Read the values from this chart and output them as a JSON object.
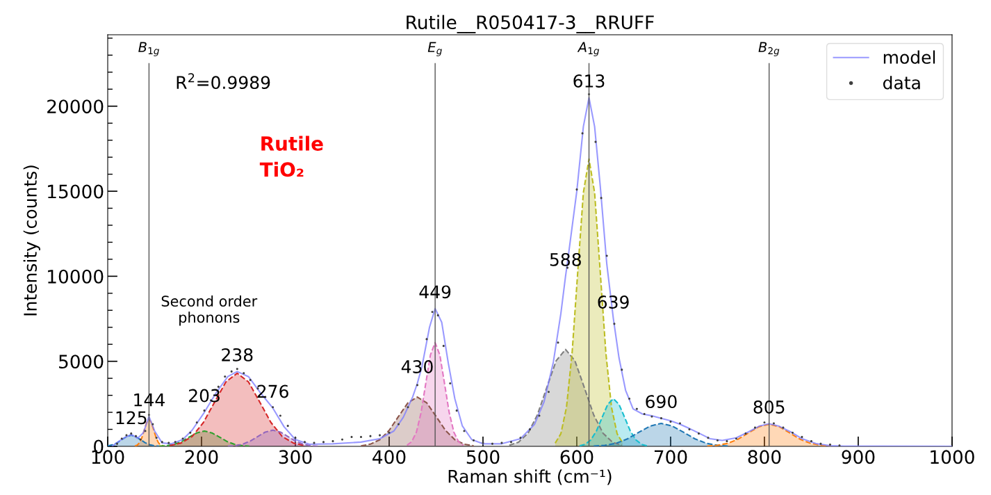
{
  "chart_data": {
    "type": "line",
    "title": "Rutile__R050417-3__RRUFF",
    "xlabel": "Raman shift (cm⁻¹)",
    "ylabel": "Intensity (counts)",
    "xlim": [
      100,
      1000
    ],
    "xticks": [
      100,
      200,
      300,
      400,
      500,
      600,
      700,
      800,
      900,
      1000
    ],
    "ylim": [
      0,
      24200
    ],
    "yticks": [
      0,
      {
        "value": 1000,
        "label": null
      },
      {
        "value": 2000,
        "label": null
      },
      {
        "value": 3000,
        "label": null
      },
      {
        "value": 4000,
        "label": null
      },
      5000,
      {
        "value": 6000,
        "label": null
      },
      {
        "value": 7000,
        "label": null
      },
      {
        "value": 8000,
        "label": null
      },
      {
        "value": 9000,
        "label": null
      },
      10000,
      {
        "value": 11000,
        "label": null
      },
      {
        "value": 12000,
        "label": null
      },
      {
        "value": 13000,
        "label": null
      },
      {
        "value": 14000,
        "label": null
      },
      15000,
      {
        "value": 16000,
        "label": null
      },
      {
        "value": 17000,
        "label": null
      },
      {
        "value": 18000,
        "label": null
      },
      {
        "value": 19000,
        "label": null
      },
      20000,
      {
        "value": 21000,
        "label": null
      },
      {
        "value": 22000,
        "label": null
      },
      {
        "value": 23000,
        "label": null
      },
      {
        "value": 24000,
        "label": null
      }
    ],
    "grid": false,
    "legend": "top right",
    "series": [
      {
        "name": "model",
        "color": "#8080ff",
        "line_style": "solid",
        "x": [
          105,
          115,
          125,
          132,
          138,
          144,
          150,
          158,
          168,
          180,
          190,
          203,
          215,
          228,
          238,
          250,
          262,
          276,
          288,
          300,
          315,
          340,
          370,
          390,
          405,
          415,
          425,
          430,
          435,
          443,
          449,
          456,
          463,
          470,
          478,
          488,
          500,
          520,
          540,
          555,
          565,
          575,
          583,
          588,
          590,
          600,
          607,
          613,
          619,
          625,
          632,
          639,
          645,
          652,
          660,
          670,
          680,
          690,
          700,
          710,
          720,
          730,
          742,
          755,
          770,
          783,
          795,
          805,
          815,
          828,
          840,
          855,
          870,
          885,
          1000
        ],
        "values": [
          20,
          420,
          700,
          480,
          800,
          1750,
          900,
          200,
          150,
          400,
          950,
          2000,
          3100,
          4100,
          4400,
          4100,
          3200,
          2250,
          1150,
          400,
          120,
          150,
          250,
          450,
          900,
          1700,
          2900,
          3700,
          4700,
          7000,
          8100,
          7300,
          4900,
          2800,
          1200,
          400,
          150,
          150,
          450,
          1300,
          2600,
          4950,
          7800,
          10000,
          10800,
          15000,
          18800,
          20500,
          18800,
          15300,
          10700,
          7500,
          5200,
          3300,
          2200,
          1900,
          1800,
          1650,
          1500,
          1300,
          1050,
          780,
          450,
          350,
          500,
          850,
          1200,
          1330,
          1200,
          850,
          450,
          160,
          40,
          10,
          0
        ]
      },
      {
        "name": "data",
        "type": "scatter",
        "color": "#404040",
        "marker": "circle",
        "x": [
          110,
          115,
          120,
          125,
          130,
          135,
          140,
          144,
          148,
          152,
          158,
          165,
          172,
          180,
          188,
          195,
          203,
          210,
          218,
          225,
          232,
          238,
          245,
          252,
          260,
          268,
          276,
          284,
          292,
          300,
          310,
          320,
          330,
          340,
          350,
          360,
          370,
          380,
          390,
          400,
          410,
          420,
          430,
          440,
          446,
          452,
          458,
          465,
          472,
          480,
          490,
          500,
          510,
          520,
          530,
          540,
          550,
          560,
          570,
          580,
          590,
          600,
          606,
          613,
          620,
          626,
          632,
          640,
          648,
          656,
          664,
          672,
          680,
          690,
          700,
          710,
          720,
          730,
          740,
          750,
          760,
          770,
          780,
          790,
          800,
          810,
          820,
          830,
          840,
          850,
          860,
          870,
          880
        ],
        "values": [
          150,
          450,
          650,
          750,
          600,
          400,
          900,
          1850,
          1300,
          500,
          250,
          200,
          250,
          450,
          800,
          1400,
          2100,
          2700,
          3500,
          4100,
          4400,
          4550,
          4300,
          3900,
          3400,
          2900,
          2300,
          1800,
          1200,
          500,
          250,
          200,
          250,
          300,
          400,
          550,
          550,
          600,
          650,
          800,
          1300,
          2300,
          3600,
          6300,
          7900,
          7700,
          5900,
          3700,
          2100,
          900,
          350,
          200,
          150,
          200,
          250,
          500,
          1000,
          1800,
          3200,
          6100,
          10500,
          15100,
          18400,
          20700,
          17900,
          14600,
          11200,
          7200,
          4500,
          2800,
          2200,
          1900,
          1750,
          1650,
          1450,
          1350,
          1000,
          750,
          500,
          350,
          300,
          450,
          750,
          1100,
          1400,
          1350,
          1100,
          800,
          550,
          300,
          150,
          100,
          50
        ]
      },
      {
        "type": "area",
        "color": "#1f77b4",
        "line_style": "dashed",
        "x": [
          100,
          105,
          110,
          115,
          120,
          125,
          130,
          135,
          140,
          145,
          150,
          155
        ],
        "values": [
          30,
          90,
          210,
          390,
          570,
          650,
          570,
          390,
          210,
          90,
          30,
          10
        ]
      },
      {
        "type": "area",
        "color": "#ff7f0e",
        "line_style": "dashed",
        "x": [
          129,
          131.5,
          134,
          136.5,
          139,
          141.5,
          144,
          146.5,
          149,
          151.5,
          154,
          156.5,
          159
        ],
        "values": [
          20,
          70,
          220,
          520,
          970,
          1410,
          1600,
          1410,
          970,
          520,
          220,
          70,
          20
        ]
      },
      {
        "type": "area",
        "color": "#2ca02c",
        "line_style": "dashed",
        "x": [
          155,
          163,
          171,
          179,
          187,
          195,
          203,
          211,
          219,
          227,
          235,
          243,
          251
        ],
        "values": [
          10,
          40,
          120,
          290,
          550,
          790,
          900,
          790,
          550,
          290,
          120,
          40,
          10
        ]
      },
      {
        "type": "area",
        "color": "#d62728",
        "line_style": "dashed",
        "x": [
          166,
          178,
          190,
          202,
          214,
          226,
          238,
          250,
          262,
          274,
          286,
          298,
          310
        ],
        "values": [
          50,
          190,
          580,
          1400,
          2610,
          3790,
          4300,
          3790,
          2610,
          1400,
          580,
          190,
          50
        ]
      },
      {
        "type": "area",
        "color": "#9467bd",
        "line_style": "dashed",
        "x": [
          228,
          236,
          244,
          252,
          260,
          268,
          276,
          284,
          292,
          300,
          308,
          316,
          324
        ],
        "values": [
          10,
          40,
          130,
          310,
          580,
          840,
          950,
          840,
          580,
          310,
          130,
          40,
          10
        ]
      },
      {
        "type": "area",
        "color": "#8c564b",
        "line_style": "dashed",
        "x": [
          370,
          380,
          390,
          400,
          410,
          420,
          430,
          440,
          450,
          460,
          470,
          480,
          490
        ],
        "values": [
          30,
          130,
          390,
          940,
          1760,
          2560,
          2900,
          2560,
          1760,
          940,
          390,
          130,
          30
        ]
      },
      {
        "type": "area",
        "color": "#e377c2",
        "line_style": "dashed",
        "x": [
          419,
          424,
          429,
          434,
          439,
          444,
          449,
          454,
          459,
          464,
          469,
          474,
          479
        ],
        "values": [
          70,
          270,
          830,
          1980,
          3700,
          5380,
          6100,
          5380,
          3700,
          1980,
          830,
          270,
          70
        ]
      },
      {
        "type": "area",
        "color": "#7f7f7f",
        "line_style": "dashed",
        "x": [
          528,
          538,
          548,
          558,
          568,
          578,
          588,
          598,
          608,
          618,
          628,
          638,
          648
        ],
        "values": [
          60,
          250,
          770,
          1850,
          3460,
          5030,
          5700,
          5030,
          3460,
          1850,
          770,
          250,
          60
        ]
      },
      {
        "type": "area",
        "color": "#bcbd22",
        "line_style": "dashed",
        "x": [
          577,
          583,
          589,
          595,
          601,
          607,
          613,
          619,
          625,
          631,
          637,
          643,
          649
        ],
        "values": [
          190,
          740,
          2290,
          5490,
          10250,
          14910,
          16900,
          14910,
          10250,
          5490,
          2290,
          740,
          190
        ]
      },
      {
        "type": "area",
        "color": "#17becf",
        "line_style": "dashed",
        "x": [
          603,
          609,
          615,
          621,
          627,
          633,
          639,
          645,
          651,
          657,
          663,
          669,
          675
        ],
        "values": [
          30,
          120,
          380,
          910,
          1700,
          2470,
          2800,
          2470,
          1700,
          910,
          380,
          120,
          30
        ]
      },
      {
        "type": "area",
        "color": "#1f77b4",
        "line_style": "dashed",
        "x": [
          618,
          630,
          642,
          654,
          666,
          678,
          690,
          702,
          714,
          726,
          738,
          750,
          762
        ],
        "values": [
          20,
          60,
          180,
          440,
          820,
          1190,
          1350,
          1190,
          820,
          440,
          180,
          60,
          20
        ]
      },
      {
        "type": "area",
        "color": "#ff7f0e",
        "line_style": "dashed",
        "x": [
          739,
          750,
          761,
          772,
          783,
          794,
          805,
          816,
          827,
          838,
          849,
          860,
          871
        ],
        "values": [
          20,
          60,
          180,
          420,
          790,
          1150,
          1300,
          1150,
          790,
          420,
          180,
          60,
          20
        ]
      }
    ],
    "ref_lines": [
      {
        "axis": "x",
        "value": 144,
        "label": "B$_{1g}$",
        "color": "#555555",
        "line_style": "solid"
      },
      {
        "axis": "x",
        "value": 449,
        "label": "E$_{g}$",
        "color": "#555555",
        "line_style": "solid"
      },
      {
        "axis": "x",
        "value": 613,
        "label": "A$_{1g}$",
        "color": "#555555",
        "line_style": "solid"
      },
      {
        "axis": "x",
        "value": 805,
        "label": "B$_{2g}$",
        "color": "#555555",
        "line_style": "solid"
      }
    ],
    "annotations": [
      "R$^{2}$=0.9989",
      "Rutile\nTiO₂",
      "Second order\nphonons",
      {
        "text": "125",
        "x": 125,
        "y": 700
      },
      {
        "text": "144",
        "x": 144,
        "y": 1750
      },
      {
        "text": "203",
        "x": 203,
        "y": 2000
      },
      {
        "text": "238",
        "x": 238,
        "y": 4400
      },
      {
        "text": "276",
        "x": 276,
        "y": 2250
      },
      {
        "text": "430",
        "x": 430,
        "y": 3700
      },
      {
        "text": "449",
        "x": 449,
        "y": 8100
      },
      {
        "text": "588",
        "x": 588,
        "y": 10000
      },
      {
        "text": "613",
        "x": 613,
        "y": 20500
      },
      {
        "text": "639",
        "x": 639,
        "y": 7500
      },
      {
        "text": "690",
        "x": 690,
        "y": 1650
      },
      {
        "text": "805",
        "x": 805,
        "y": 1330
      }
    ]
  }
}
